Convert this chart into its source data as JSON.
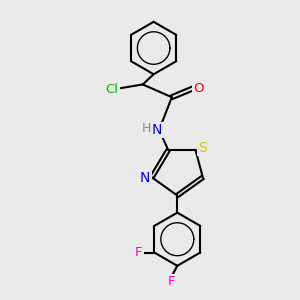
{
  "bg_color": "#eaeaea",
  "line_color": "#000000",
  "bond_width": 1.5,
  "atom_colors": {
    "Cl": "#00bb00",
    "O": "#ff0000",
    "N": "#0000ff",
    "S": "#cccc00",
    "F": "#ff00cc",
    "H": "#888888"
  },
  "font_size": 9.5,
  "aromatic_inner_ratio": 0.62
}
